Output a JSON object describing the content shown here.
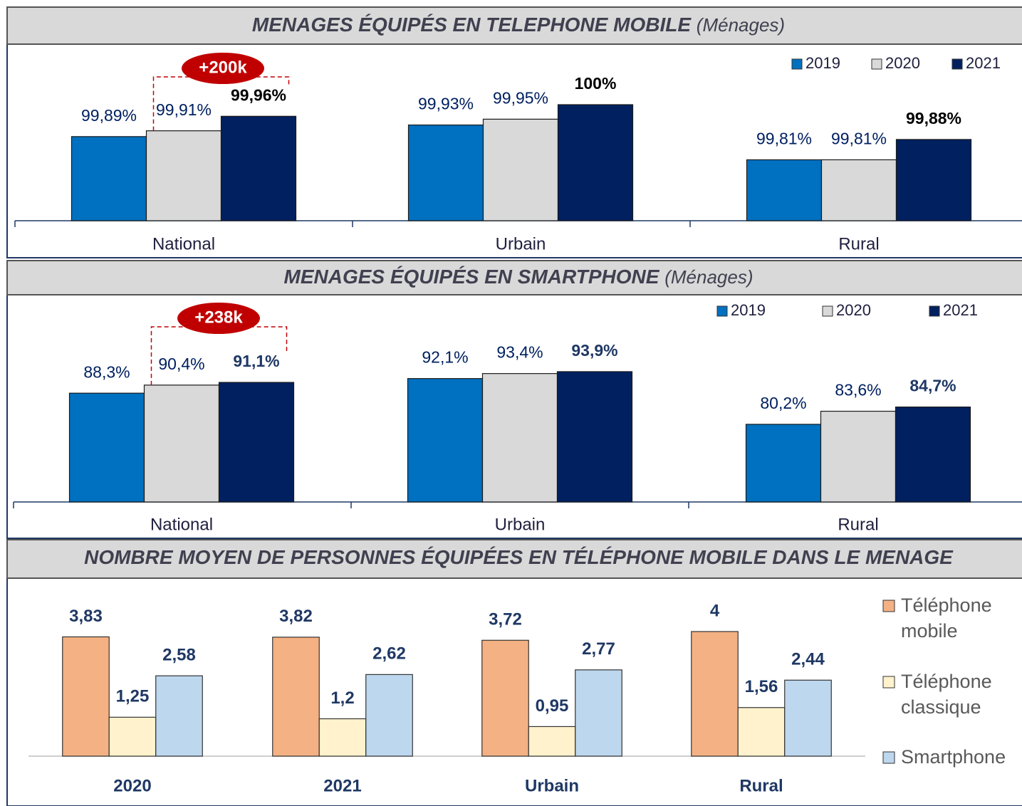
{
  "chart_data": [
    {
      "type": "bar",
      "title": "MENAGES ÉQUIPÉS EN TELEPHONE MOBILE",
      "subtitle": "(Ménages)",
      "categories": [
        "National",
        "Urbain",
        "Rural"
      ],
      "series": [
        {
          "name": "2019",
          "color": "#0070c0",
          "values": [
            99.89,
            99.93,
            99.81
          ],
          "value_labels": [
            "99,89%",
            "99,93%",
            "99,81%"
          ]
        },
        {
          "name": "2020",
          "color": "#d9d9d9",
          "values": [
            99.91,
            99.95,
            99.81
          ],
          "value_labels": [
            "99,91%",
            "99,95%",
            "99,81%"
          ]
        },
        {
          "name": "2021",
          "color": "#002060",
          "values": [
            99.96,
            100,
            99.88
          ],
          "value_labels": [
            "99,96%",
            "100%",
            "99,88%"
          ]
        }
      ],
      "ylim": [
        99.6,
        100
      ],
      "annotation": "+200k"
    },
    {
      "type": "bar",
      "title": "MENAGES ÉQUIPÉS EN SMARTPHONE",
      "subtitle": "(Ménages)",
      "categories": [
        "National",
        "Urbain",
        "Rural"
      ],
      "series": [
        {
          "name": "2019",
          "color": "#0070c0",
          "values": [
            88.3,
            92.1,
            80.2
          ],
          "value_labels": [
            "88,3%",
            "92,1%",
            "80,2%"
          ]
        },
        {
          "name": "2020",
          "color": "#d9d9d9",
          "values": [
            90.4,
            93.4,
            83.6
          ],
          "value_labels": [
            "90,4%",
            "93,4%",
            "83,6%"
          ]
        },
        {
          "name": "2021",
          "color": "#002060",
          "values": [
            91.1,
            93.9,
            84.7
          ],
          "value_labels": [
            "91,1%",
            "93,9%",
            "84,7%"
          ]
        }
      ],
      "ylim": [
        60,
        100
      ],
      "annotation": "+238k"
    },
    {
      "type": "bar",
      "title": "NOMBRE MOYEN DE PERSONNES ÉQUIPÉES EN TÉLÉPHONE MOBILE DANS LE MENAGE",
      "categories": [
        "2020",
        "2021",
        "Urbain",
        "Rural"
      ],
      "series": [
        {
          "name": "Téléphone mobile",
          "color": "#f4b183",
          "values": [
            3.83,
            3.82,
            3.72,
            4
          ],
          "value_labels": [
            "3,83",
            "3,82",
            "3,72",
            "4"
          ]
        },
        {
          "name": "Téléphone classique",
          "color": "#fff2cc",
          "values": [
            1.25,
            1.2,
            0.95,
            1.56
          ],
          "value_labels": [
            "1,25",
            "1,2",
            "0,95",
            "1,56"
          ]
        },
        {
          "name": "Smartphone",
          "color": "#bdd7ee",
          "values": [
            2.58,
            2.62,
            2.77,
            2.44
          ],
          "value_labels": [
            "2,58",
            "2,62",
            "2,77",
            "2,44"
          ]
        }
      ],
      "ylim": [
        0,
        4
      ]
    }
  ]
}
